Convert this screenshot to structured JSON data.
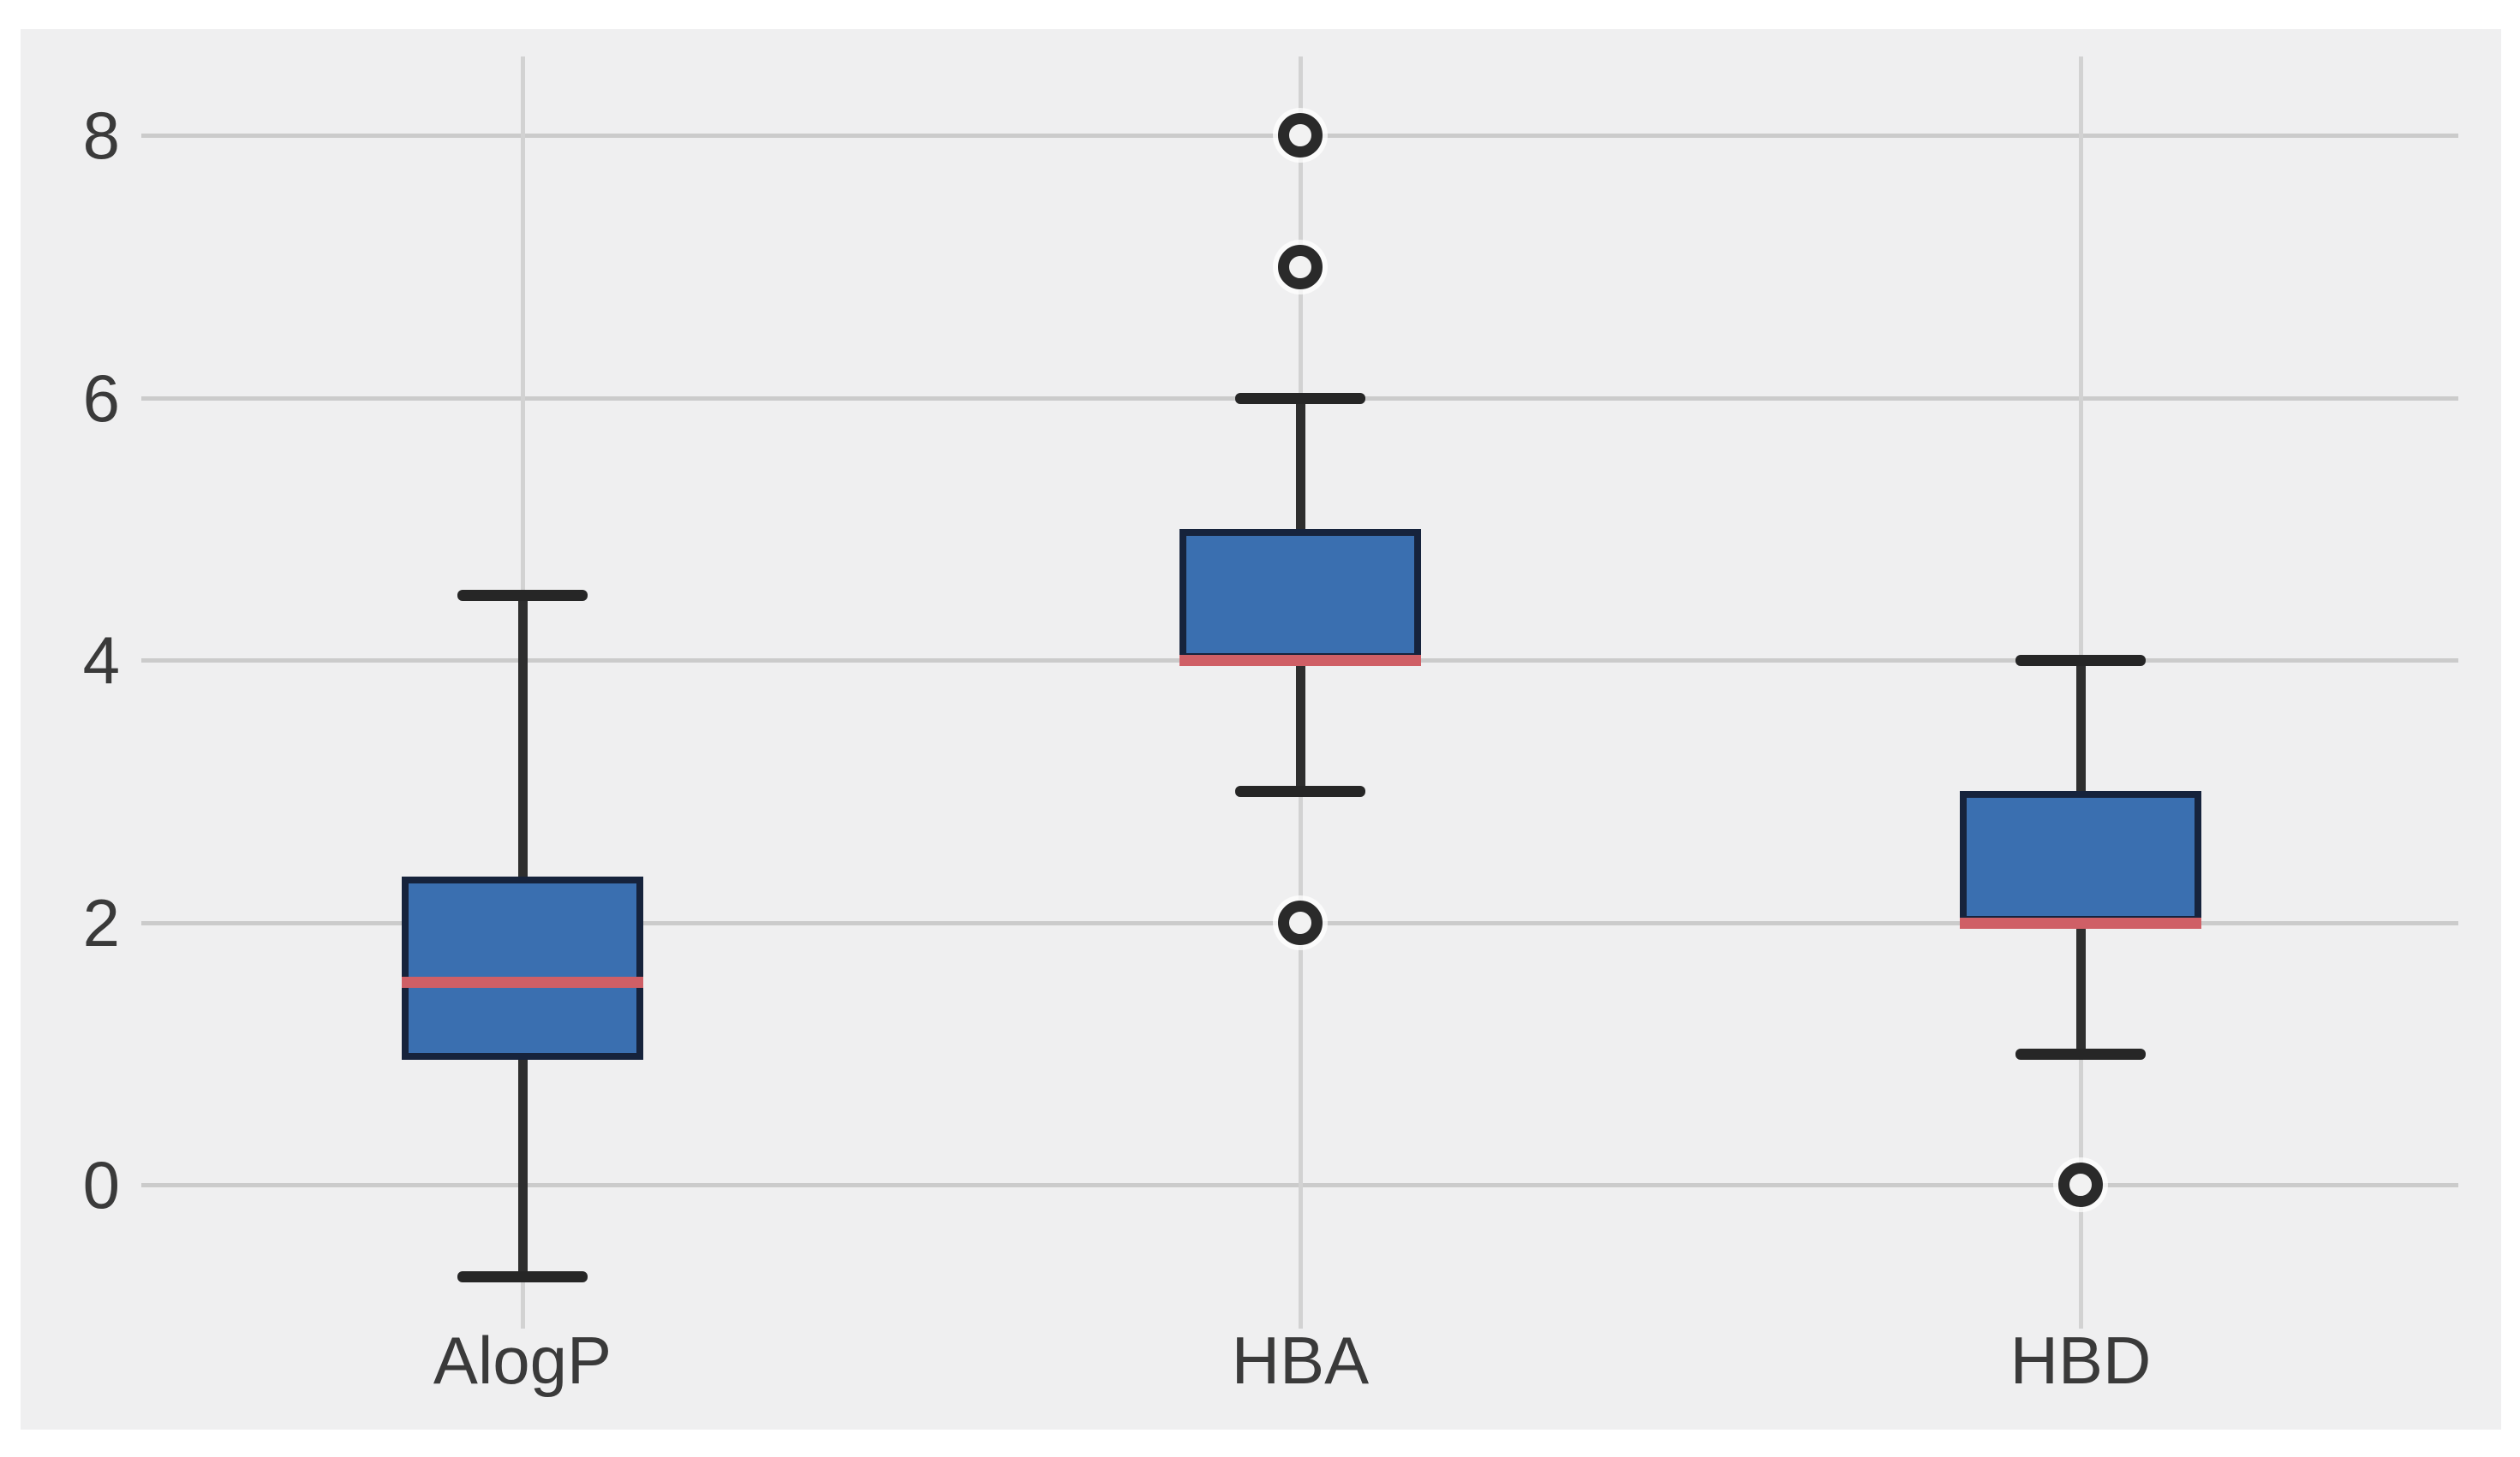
{
  "page": {
    "background": "#ffffff",
    "panel_background": "#efeff0"
  },
  "chart_data": {
    "type": "boxplot",
    "title": "",
    "categories": [
      "AlogP",
      "HBA",
      "HBD"
    ],
    "y_axis": {
      "tick_labels": [
        "8",
        "6",
        "4",
        "2",
        "0"
      ],
      "tick_values": [
        8,
        6,
        4,
        2,
        0
      ],
      "ylim": [
        -1.1,
        8.6
      ]
    },
    "x_axis": {
      "tick_labels": [
        "AlogP",
        "HBA",
        "HBD"
      ]
    },
    "grid": {
      "horizontal_gridlines": true,
      "vertical_gridlines_at_categories": true
    },
    "series": [
      {
        "label": "AlogP",
        "whislo": -0.7,
        "q1": 0.95,
        "med": 1.55,
        "q3": 2.35,
        "whishi": 4.5,
        "fliers": []
      },
      {
        "label": "HBA",
        "whislo": 3.0,
        "q1": 4.0,
        "med": 4.0,
        "q3": 5.0,
        "whishi": 6.0,
        "fliers": [
          2,
          7,
          8
        ]
      },
      {
        "label": "HBD",
        "whislo": 1.0,
        "q1": 2.0,
        "med": 2.0,
        "q3": 3.0,
        "whishi": 4.0,
        "fliers": [
          0
        ]
      }
    ],
    "style": {
      "box_fill": "#3a6fb0",
      "box_edge": "#16233c",
      "median_color": "#cf5f66",
      "whisker_color": "#2e2e2e",
      "cap_color": "#262626",
      "flier_edge": "#2a2a2a",
      "flier_fill": "#f2f2f2",
      "hgrid_color": "#cbcbcb",
      "vgrid_color": "#d2d2d2",
      "panel_bg": "#efeff0",
      "tick_label_color": "#3a3a3a"
    }
  }
}
